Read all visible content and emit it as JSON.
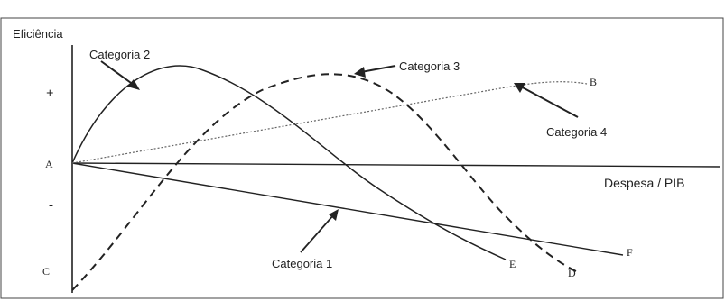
{
  "axes": {
    "y_label": "Eficiência",
    "x_label": "Despesa / PIB",
    "positive_sign": "+",
    "negative_sign": "-"
  },
  "points": {
    "A": "A",
    "B": "B",
    "C": "C",
    "D": "D",
    "E": "E",
    "F": "F"
  },
  "categories": {
    "cat1": "Categoria 1",
    "cat2": "Categoria 2",
    "cat3": "Categoria 3",
    "cat4": "Categoria 4"
  },
  "colors": {
    "line": "#222222",
    "dotted": "#666666",
    "background": "#ffffff"
  }
}
